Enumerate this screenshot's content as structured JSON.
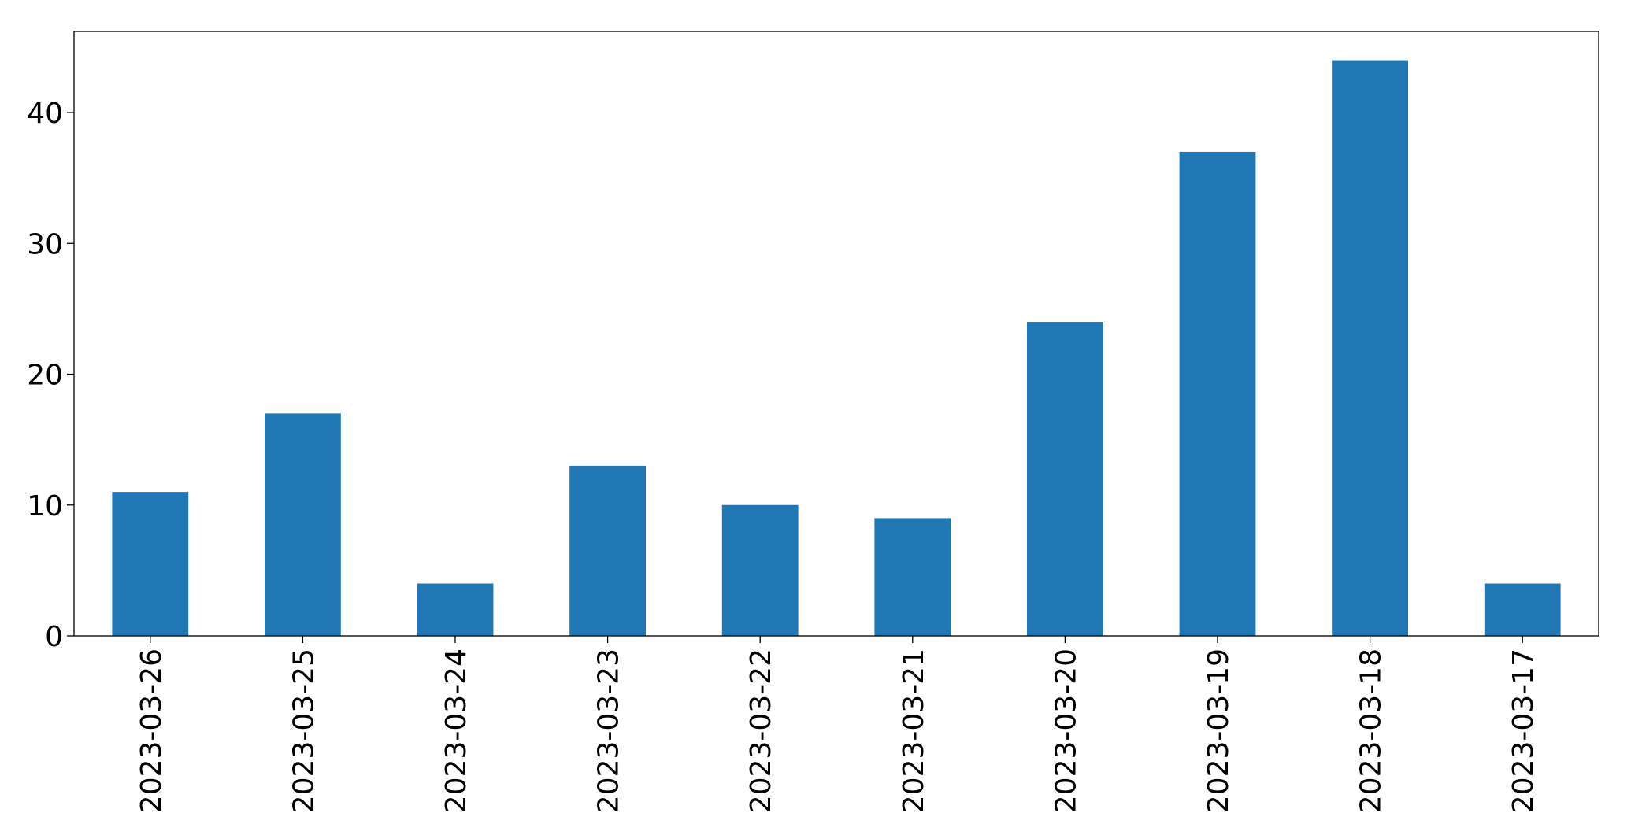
{
  "chart_data": {
    "type": "bar",
    "categories": [
      "2023-03-26",
      "2023-03-25",
      "2023-03-24",
      "2023-03-23",
      "2023-03-22",
      "2023-03-21",
      "2023-03-20",
      "2023-03-19",
      "2023-03-18",
      "2023-03-17"
    ],
    "values": [
      11,
      17,
      4,
      13,
      10,
      9,
      24,
      37,
      44,
      4
    ],
    "color": "#1f77b4",
    "ylim": [
      0,
      46.2
    ],
    "yticks": [
      0,
      10,
      20,
      30,
      40
    ],
    "grid": false
  }
}
